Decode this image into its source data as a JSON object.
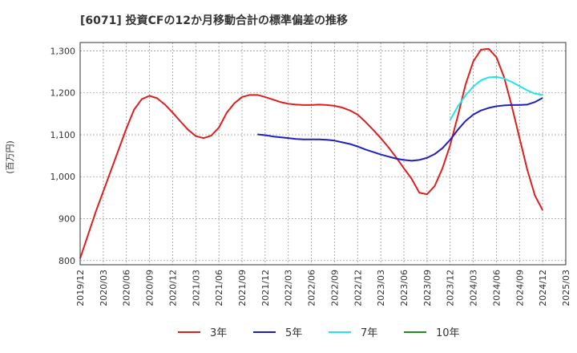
{
  "chart_data": {
    "type": "line",
    "title": "[6071]  投資CFの12か月移動合計の標準偏差の推移",
    "ylabel": "(百万円)",
    "xlabel": "",
    "ylim": [
      790,
      1320
    ],
    "yticks": [
      800,
      900,
      1000,
      1100,
      1200,
      1300
    ],
    "ytick_labels": [
      "800",
      "900",
      "1,000",
      "1,100",
      "1,200",
      "1,300"
    ],
    "xticks": [
      "2019/12",
      "2020/03",
      "2020/06",
      "2020/09",
      "2020/12",
      "2021/03",
      "2021/06",
      "2021/09",
      "2021/12",
      "2022/03",
      "2022/06",
      "2022/09",
      "2022/12",
      "2023/03",
      "2023/06",
      "2023/09",
      "2023/12",
      "2024/03",
      "2024/06",
      "2024/09",
      "2024/12",
      "2025/03"
    ],
    "grid": true,
    "legend_position": "bottom",
    "x_start": "2019/12",
    "series": [
      {
        "name": "3年",
        "color": "#dd1f1f",
        "x": [
          "2019/12",
          "2020/01",
          "2020/02",
          "2020/03",
          "2020/04",
          "2020/05",
          "2020/06",
          "2020/07",
          "2020/08",
          "2020/09",
          "2020/10",
          "2020/11",
          "2020/12",
          "2021/01",
          "2021/02",
          "2021/03",
          "2021/04",
          "2021/05",
          "2021/06",
          "2021/07",
          "2021/08",
          "2021/09",
          "2021/10",
          "2021/11",
          "2021/12",
          "2022/01",
          "2022/02",
          "2022/03",
          "2022/04",
          "2022/05",
          "2022/06",
          "2022/07",
          "2022/08",
          "2022/09",
          "2022/10",
          "2022/11",
          "2022/12",
          "2023/01",
          "2023/02",
          "2023/03",
          "2023/04",
          "2023/05",
          "2023/06",
          "2023/07",
          "2023/08",
          "2023/09",
          "2023/10",
          "2023/11",
          "2023/12",
          "2024/01",
          "2024/02",
          "2024/03",
          "2024/04",
          "2024/05",
          "2024/06",
          "2024/07",
          "2024/08",
          "2024/09",
          "2024/10",
          "2024/11",
          "2024/12"
        ],
        "values": [
          805,
          860,
          915,
          965,
          1015,
          1065,
          1115,
          1160,
          1185,
          1193,
          1187,
          1172,
          1153,
          1132,
          1112,
          1097,
          1092,
          1098,
          1117,
          1152,
          1175,
          1190,
          1195,
          1195,
          1190,
          1184,
          1178,
          1174,
          1172,
          1171,
          1171,
          1172,
          1171,
          1169,
          1165,
          1158,
          1148,
          1131,
          1112,
          1092,
          1070,
          1046,
          1020,
          995,
          962,
          958,
          978,
          1020,
          1075,
          1145,
          1220,
          1275,
          1303,
          1305,
          1285,
          1237,
          1168,
          1092,
          1017,
          955,
          920
        ]
      },
      {
        "name": "5年",
        "color": "#1f1fbf",
        "x": [
          "2021/11",
          "2021/12",
          "2022/01",
          "2022/02",
          "2022/03",
          "2022/04",
          "2022/05",
          "2022/06",
          "2022/07",
          "2022/08",
          "2022/09",
          "2022/10",
          "2022/11",
          "2022/12",
          "2023/01",
          "2023/02",
          "2023/03",
          "2023/04",
          "2023/05",
          "2023/06",
          "2023/07",
          "2023/08",
          "2023/09",
          "2023/10",
          "2023/11",
          "2023/12",
          "2024/01",
          "2024/02",
          "2024/03",
          "2024/04",
          "2024/05",
          "2024/06",
          "2024/07",
          "2024/08",
          "2024/09",
          "2024/10",
          "2024/11",
          "2024/12"
        ],
        "values": [
          1101,
          1099,
          1096,
          1094,
          1092,
          1090,
          1089,
          1089,
          1089,
          1088,
          1086,
          1082,
          1078,
          1072,
          1065,
          1059,
          1053,
          1048,
          1043,
          1040,
          1038,
          1040,
          1045,
          1054,
          1068,
          1088,
          1112,
          1133,
          1148,
          1158,
          1164,
          1168,
          1170,
          1171,
          1171,
          1172,
          1178,
          1188
        ]
      },
      {
        "name": "7年",
        "color": "#22e5e5",
        "x": [
          "2023/12",
          "2024/01",
          "2024/02",
          "2024/03",
          "2024/04",
          "2024/05",
          "2024/06",
          "2024/07",
          "2024/08",
          "2024/09",
          "2024/10",
          "2024/11",
          "2024/12"
        ],
        "values": [
          1135,
          1168,
          1194,
          1215,
          1230,
          1237,
          1238,
          1234,
          1226,
          1216,
          1206,
          1198,
          1195
        ]
      },
      {
        "name": "10年",
        "color": "#1e8c1e",
        "x": [],
        "values": []
      }
    ]
  }
}
